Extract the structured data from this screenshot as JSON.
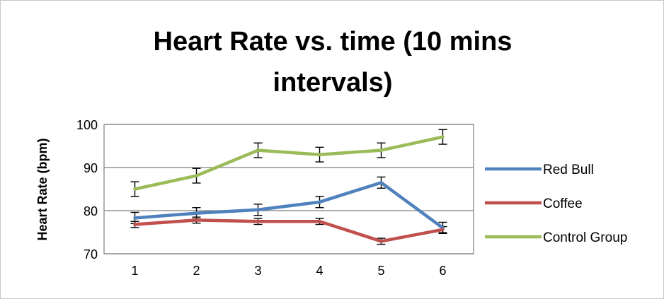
{
  "chart_data": {
    "type": "line",
    "title": "Heart Rate vs. time (10 mins intervals)",
    "xlabel": "",
    "ylabel": "Heart Rate (bpm)",
    "categories": [
      "1",
      "2",
      "3",
      "4",
      "5",
      "6"
    ],
    "ylim": [
      70,
      100
    ],
    "yticks": [
      "70",
      "80",
      "90",
      "100"
    ],
    "grid": true,
    "legend_position": "right",
    "error_bars": true,
    "series": [
      {
        "name": "Red Bull",
        "color": "#4f81bd",
        "values": [
          78.3,
          79.4,
          80.2,
          82.0,
          86.5,
          76.0
        ],
        "errors": [
          1.3,
          1.3,
          1.3,
          1.3,
          1.3,
          1.3
        ]
      },
      {
        "name": "Coffee",
        "color": "#c0504d",
        "values": [
          76.8,
          77.8,
          77.5,
          77.5,
          72.9,
          75.6
        ],
        "errors": [
          0.7,
          0.7,
          0.7,
          0.7,
          0.7,
          0.7
        ]
      },
      {
        "name": "Control Group",
        "color": "#9bbb59",
        "values": [
          85.0,
          88.1,
          94.0,
          93.0,
          94.0,
          97.1
        ],
        "errors": [
          1.7,
          1.7,
          1.7,
          1.7,
          1.7,
          1.7
        ]
      }
    ]
  }
}
